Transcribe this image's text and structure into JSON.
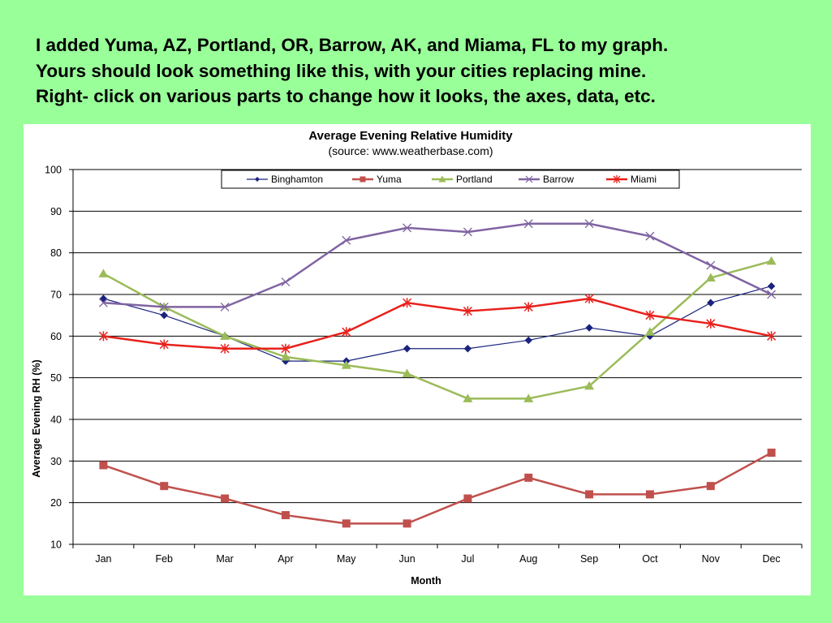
{
  "slide": {
    "lines": [
      "I added Yuma, AZ, Portland, OR, Barrow, AK, and Miama, FL to my graph.",
      "Yours should look something like this, with your cities replacing mine.",
      "Right- click on various parts to change how it looks, the axes, data, etc."
    ]
  },
  "chart_data": {
    "type": "line",
    "title": "Average Evening  Relative Humidity",
    "subtitle": "(source:  www.weatherbase.com)",
    "xlabel": "Month",
    "ylabel": "Average Evening RH (%)",
    "ylim": [
      10,
      100
    ],
    "yticks": [
      10,
      20,
      30,
      40,
      50,
      60,
      70,
      80,
      90,
      100
    ],
    "grid": true,
    "legend_position": "top",
    "categories": [
      "Jan",
      "Feb",
      "Mar",
      "Apr",
      "May",
      "Jun",
      "Jul",
      "Aug",
      "Sep",
      "Oct",
      "Nov",
      "Dec"
    ],
    "series": [
      {
        "name": "Binghamton",
        "color": "#1a237e",
        "marker": "diamond",
        "values": [
          69,
          65,
          60,
          54,
          54,
          57,
          57,
          59,
          62,
          60,
          68,
          72
        ]
      },
      {
        "name": "Yuma",
        "color": "#c0504d",
        "marker": "square",
        "values": [
          29,
          24,
          21,
          17,
          15,
          15,
          21,
          26,
          22,
          22,
          24,
          32
        ]
      },
      {
        "name": "Portland",
        "color": "#9bbb59",
        "marker": "triangle",
        "values": [
          75,
          67,
          60,
          55,
          53,
          51,
          45,
          45,
          48,
          61,
          74,
          78
        ]
      },
      {
        "name": "Barrow",
        "color": "#8064a2",
        "marker": "x",
        "values": [
          68,
          67,
          67,
          73,
          83,
          86,
          85,
          87,
          87,
          84,
          77,
          70
        ]
      },
      {
        "name": "Miami",
        "color": "#e8211c",
        "marker": "star",
        "values": [
          60,
          58,
          57,
          57,
          61,
          68,
          66,
          67,
          69,
          65,
          63,
          60
        ]
      }
    ]
  }
}
